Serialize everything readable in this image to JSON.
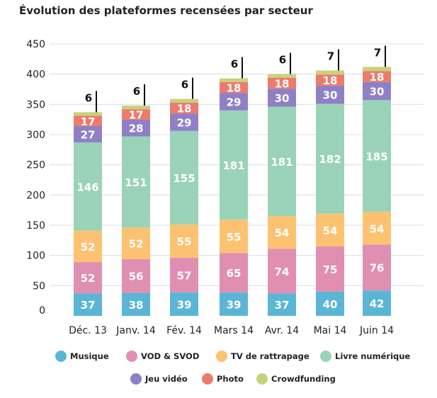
{
  "chart_data": {
    "type": "bar",
    "stacked": true,
    "title": "Évolution des plateformes recensées par secteur",
    "categories": [
      "Déc. 13",
      "Janv. 14",
      "Fév. 14",
      "Mars 14",
      "Avr. 14",
      "Mai 14",
      "Juin 14"
    ],
    "ylim": [
      0,
      450
    ],
    "yticks": [
      0,
      50,
      100,
      150,
      200,
      250,
      300,
      350,
      400,
      450
    ],
    "grid": true,
    "legend": "bottom",
    "series": [
      {
        "name": "Musique",
        "color": "#5bb6d6",
        "values": [
          37,
          38,
          39,
          39,
          37,
          40,
          42
        ]
      },
      {
        "name": "VOD & SVOD",
        "color": "#e08fb3",
        "values": [
          52,
          56,
          57,
          65,
          74,
          75,
          76
        ]
      },
      {
        "name": "TV de rattrapage",
        "color": "#fdc271",
        "values": [
          52,
          52,
          55,
          55,
          54,
          54,
          54
        ]
      },
      {
        "name": "Livre numérique",
        "color": "#9ad3b7",
        "values": [
          146,
          151,
          155,
          181,
          181,
          182,
          185
        ]
      },
      {
        "name": "Jeu vidéo",
        "color": "#8f80c6",
        "values": [
          27,
          28,
          29,
          29,
          30,
          30,
          30
        ]
      },
      {
        "name": "Photo",
        "color": "#ec7b6b",
        "values": [
          17,
          17,
          18,
          18,
          18,
          18,
          18
        ]
      },
      {
        "name": "Crowdfunding",
        "color": "#c8d27a",
        "values": [
          6,
          6,
          6,
          6,
          6,
          7,
          7
        ]
      }
    ]
  }
}
